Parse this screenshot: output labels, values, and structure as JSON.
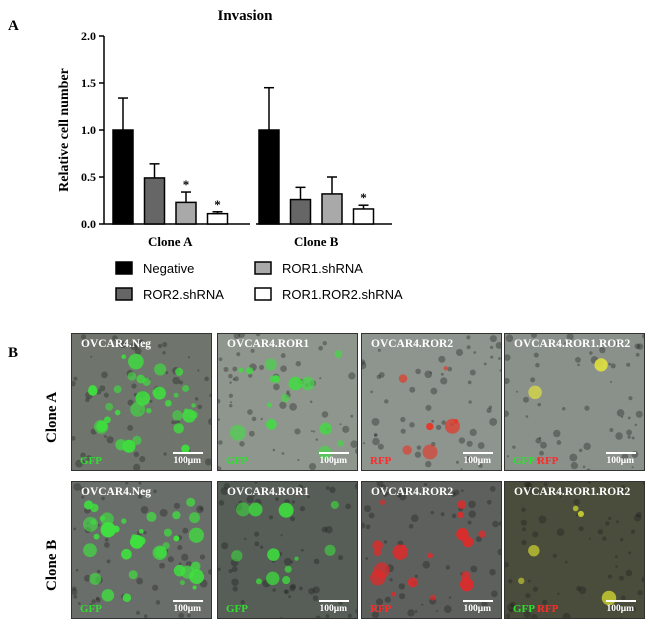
{
  "panel_a": {
    "letter": "A"
  },
  "panel_b": {
    "letter": "B",
    "rows": [
      {
        "label": "Clone A",
        "tiles": [
          {
            "title": "OVCAR4.Neg",
            "channels": [
              {
                "text": "GFP",
                "color": "#2ee02e"
              }
            ],
            "scale": "100μm",
            "bg": "#6f756d",
            "dots": "#3fdc3f",
            "density": 0.55
          },
          {
            "title": "OVCAR4.ROR1",
            "channels": [
              {
                "text": "GFP",
                "color": "#2ee02e"
              }
            ],
            "scale": "100μm",
            "bg": "#8f968e",
            "dots": "#45d845",
            "density": 0.25
          },
          {
            "title": "OVCAR4.ROR2",
            "channels": [
              {
                "text": "RFP",
                "color": "#ff2a2a"
              }
            ],
            "scale": "100μm",
            "bg": "#8e948e",
            "dots": "#e23a2a",
            "density": 0.12
          },
          {
            "title": "OVCAR4.ROR1.ROR2",
            "channels": [
              {
                "text": "GFP",
                "color": "#2ee02e"
              },
              {
                "text": "RFP",
                "color": "#ff2a2a"
              }
            ],
            "scale": "100μm",
            "bg": "#8a918a",
            "dots": "#e0e040",
            "density": 0.03
          }
        ]
      },
      {
        "label": "Clone B",
        "tiles": [
          {
            "title": "OVCAR4.Neg",
            "channels": [
              {
                "text": "GFP",
                "color": "#2ee02e"
              }
            ],
            "scale": "100μm",
            "bg": "#6a6e6a",
            "dots": "#3fe03f",
            "density": 0.6
          },
          {
            "title": "OVCAR4.ROR1",
            "channels": [
              {
                "text": "GFP",
                "color": "#2ee02e"
              }
            ],
            "scale": "100μm",
            "bg": "#575d57",
            "dots": "#3ed43e",
            "density": 0.2
          },
          {
            "title": "OVCAR4.ROR2",
            "channels": [
              {
                "text": "RFP",
                "color": "#ff2a2a"
              }
            ],
            "scale": "100μm",
            "bg": "#5d605d",
            "dots": "#e02a2a",
            "density": 0.3
          },
          {
            "title": "OVCAR4.ROR1.ROR2",
            "channels": [
              {
                "text": "GFP",
                "color": "#2ee02e"
              },
              {
                "text": "RFP",
                "color": "#ff2a2a"
              }
            ],
            "scale": "100μm",
            "bg": "#4a4d3c",
            "dots": "#c8d030",
            "density": 0.08
          }
        ]
      }
    ]
  },
  "chart_data": {
    "type": "bar",
    "title": "Invasion",
    "ylabel": "Relative cell number",
    "xlabel": "",
    "ylim": [
      0,
      2.0
    ],
    "yticks": [
      "0.0",
      "0.5",
      "1.0",
      "1.5",
      "2.0"
    ],
    "categories": [
      "Clone A",
      "Clone B"
    ],
    "series": [
      {
        "name": "Negative",
        "color": "#000000",
        "values": [
          1.0,
          1.0
        ],
        "errors": [
          0.34,
          0.45
        ],
        "sig": [
          "",
          ""
        ]
      },
      {
        "name": "ROR2.shRNA",
        "color": "#666666",
        "values": [
          0.49,
          0.26
        ],
        "errors": [
          0.15,
          0.13
        ],
        "sig": [
          "",
          ""
        ]
      },
      {
        "name": "ROR1.shRNA",
        "color": "#a9a9a9",
        "values": [
          0.23,
          0.32
        ],
        "errors": [
          0.11,
          0.18
        ],
        "sig": [
          "*",
          ""
        ]
      },
      {
        "name": "ROR1.ROR2.shRNA",
        "color": "#ffffff",
        "values": [
          0.11,
          0.16
        ],
        "errors": [
          0.02,
          0.04
        ],
        "sig": [
          "*",
          "*"
        ]
      }
    ],
    "legend": {
      "placement": "bottom",
      "order": [
        "Negative",
        "ROR1.shRNA",
        "ROR2.shRNA",
        "ROR1.ROR2.shRNA"
      ]
    },
    "grid": false
  }
}
